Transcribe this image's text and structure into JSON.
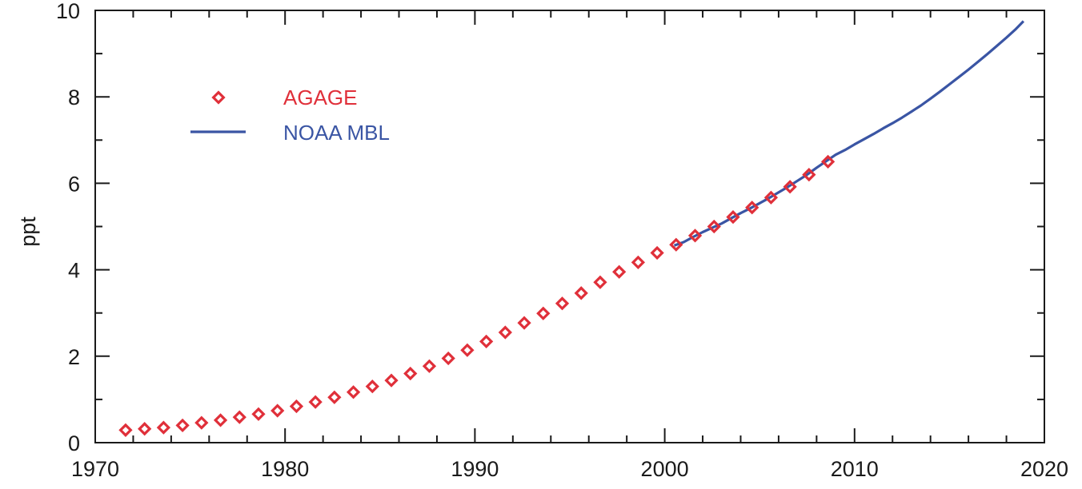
{
  "chart_data": {
    "type": "scatter",
    "title": "",
    "xlabel": "",
    "ylabel": "ppt",
    "xlim": [
      1970,
      2020
    ],
    "ylim": [
      0,
      10
    ],
    "x_ticks": [
      1970,
      1980,
      1990,
      2000,
      2010,
      2020
    ],
    "y_ticks": [
      0,
      2,
      4,
      6,
      8,
      10
    ],
    "grid": false,
    "legend": {
      "placement": "top-left"
    },
    "series": [
      {
        "name": "AGAGE",
        "type": "scatter",
        "marker": "diamond-open",
        "color": "#e0303a",
        "x": [
          1971.6,
          1972.6,
          1973.6,
          1974.6,
          1975.6,
          1976.6,
          1977.6,
          1978.6,
          1979.6,
          1980.6,
          1981.6,
          1982.6,
          1983.6,
          1984.6,
          1985.6,
          1986.6,
          1987.6,
          1988.6,
          1989.6,
          1990.6,
          1991.6,
          1992.6,
          1993.6,
          1994.6,
          1995.6,
          1996.6,
          1997.6,
          1998.6,
          1999.6,
          2000.6,
          2001.6,
          2002.6,
          2003.6,
          2004.6,
          2005.6,
          2006.6,
          2007.6,
          2008.6
        ],
        "y": [
          0.29,
          0.32,
          0.35,
          0.4,
          0.46,
          0.52,
          0.59,
          0.66,
          0.74,
          0.84,
          0.94,
          1.05,
          1.17,
          1.3,
          1.44,
          1.6,
          1.77,
          1.95,
          2.14,
          2.34,
          2.55,
          2.77,
          2.99,
          3.22,
          3.46,
          3.71,
          3.95,
          4.17,
          4.39,
          4.58,
          4.79,
          5.0,
          5.22,
          5.44,
          5.67,
          5.92,
          6.2,
          6.5
        ]
      },
      {
        "name": "NOAA MBL",
        "type": "line",
        "color": "#3a55a4",
        "x": [
          2000.5,
          2001.0,
          2001.5,
          2002.0,
          2002.5,
          2003.0,
          2003.5,
          2004.0,
          2004.5,
          2005.0,
          2005.5,
          2006.0,
          2006.5,
          2007.0,
          2007.5,
          2008.0,
          2008.5,
          2009.0,
          2009.5,
          2010.0,
          2010.5,
          2011.0,
          2011.5,
          2012.0,
          2012.5,
          2013.0,
          2013.5,
          2014.0,
          2014.5,
          2015.0,
          2015.5,
          2016.0,
          2016.5,
          2017.0,
          2017.5,
          2018.0,
          2018.5,
          2018.9
        ],
        "y": [
          4.56,
          4.64,
          4.76,
          4.87,
          4.97,
          5.07,
          5.19,
          5.31,
          5.42,
          5.54,
          5.66,
          5.79,
          5.92,
          6.06,
          6.2,
          6.36,
          6.51,
          6.66,
          6.77,
          6.9,
          7.02,
          7.14,
          7.27,
          7.39,
          7.52,
          7.66,
          7.8,
          7.96,
          8.12,
          8.29,
          8.46,
          8.63,
          8.81,
          8.99,
          9.18,
          9.37,
          9.57,
          9.75
        ]
      }
    ]
  }
}
